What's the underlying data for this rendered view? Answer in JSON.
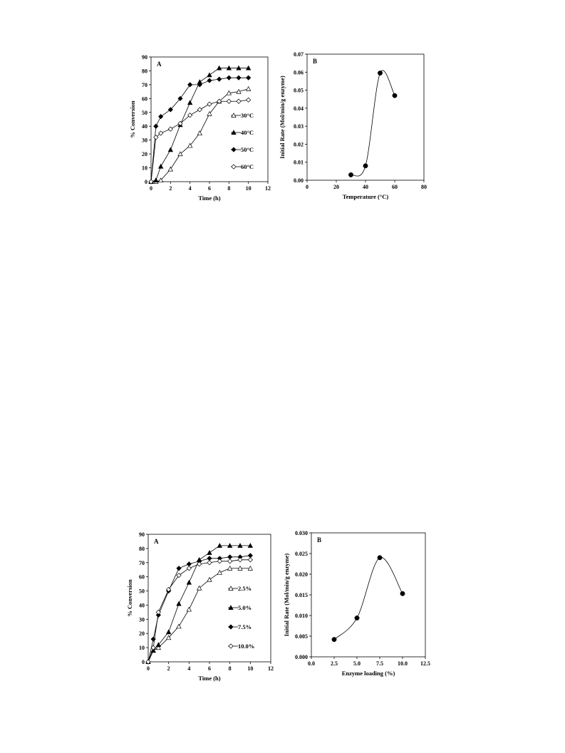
{
  "chart_data": [
    {
      "id": "fig1A",
      "type": "line",
      "panel_label": "A",
      "xlabel": "Time (h)",
      "ylabel": "% Conversion",
      "xlim": [
        0,
        12
      ],
      "ylim": [
        0,
        90
      ],
      "xticks": [
        "0",
        "2",
        "4",
        "6",
        "8",
        "10",
        "12"
      ],
      "yticks": [
        "0",
        "10",
        "20",
        "30",
        "40",
        "50",
        "60",
        "70",
        "80",
        "90"
      ],
      "legend_position": "right",
      "series": [
        {
          "name": "30°C",
          "marker": "triangle-open",
          "x": [
            0,
            0.5,
            1,
            2,
            3,
            4,
            5,
            6,
            7,
            8,
            9,
            10
          ],
          "y": [
            0,
            0,
            1,
            9,
            20,
            26,
            35,
            49,
            58,
            64,
            65,
            67
          ]
        },
        {
          "name": "40°C",
          "marker": "triangle-filled",
          "x": [
            0,
            0.5,
            1,
            2,
            3,
            4,
            5,
            6,
            7,
            8,
            9,
            10
          ],
          "y": [
            0,
            1,
            11,
            23,
            41,
            57,
            72,
            77,
            82,
            82,
            82,
            82
          ]
        },
        {
          "name": "50°C",
          "marker": "diamond-filled",
          "x": [
            0,
            0.5,
            1,
            2,
            3,
            4,
            5,
            6,
            7,
            8,
            9,
            10
          ],
          "y": [
            0,
            40,
            47,
            52,
            60,
            70,
            70,
            73,
            74,
            75,
            75,
            75
          ]
        },
        {
          "name": "60°C",
          "marker": "diamond-open",
          "x": [
            0,
            0.5,
            1,
            2,
            3,
            4,
            5,
            6,
            7,
            8,
            9,
            10
          ],
          "y": [
            0,
            32,
            35,
            38,
            42,
            48,
            52,
            56,
            58,
            58,
            58,
            59
          ]
        }
      ]
    },
    {
      "id": "fig1B",
      "type": "scatter",
      "panel_label": "B",
      "xlabel": "Temperature (°C)",
      "ylabel": "Initial Rate (Mol/min/g enzyme)",
      "xlim": [
        0,
        80
      ],
      "ylim": [
        0,
        0.07
      ],
      "xticks": [
        "0",
        "20",
        "40",
        "60",
        "80"
      ],
      "yticks": [
        "0.00",
        "0.01",
        "0.02",
        "0.03",
        "0.04",
        "0.05",
        "0.06",
        "0.07"
      ],
      "series": [
        {
          "marker": "circle-filled",
          "smooth_line": true,
          "x": [
            30,
            40,
            50,
            60
          ],
          "y": [
            0.003,
            0.008,
            0.0595,
            0.047
          ]
        }
      ]
    },
    {
      "id": "fig2A",
      "type": "line",
      "panel_label": "A",
      "xlabel": "Time (h)",
      "ylabel": "% Conversion",
      "xlim": [
        0,
        12
      ],
      "ylim": [
        0,
        90
      ],
      "xticks": [
        "0",
        "2",
        "4",
        "6",
        "8",
        "10",
        "12"
      ],
      "yticks": [
        "0",
        "10",
        "20",
        "30",
        "40",
        "50",
        "60",
        "70",
        "80",
        "90"
      ],
      "legend_position": "right",
      "series": [
        {
          "name": "2.5%",
          "marker": "triangle-open",
          "x": [
            0,
            0.5,
            1,
            2,
            3,
            4,
            5,
            6,
            7,
            8,
            9,
            10
          ],
          "y": [
            0,
            8,
            10,
            17,
            25,
            37,
            52,
            58,
            63,
            66,
            66,
            66
          ]
        },
        {
          "name": "5.0%",
          "marker": "triangle-filled",
          "x": [
            0,
            0.5,
            1,
            2,
            3,
            4,
            5,
            6,
            7,
            8,
            9,
            10
          ],
          "y": [
            0,
            8,
            12,
            21,
            41,
            56,
            72,
            77,
            82,
            82,
            82,
            82
          ]
        },
        {
          "name": "7.5%",
          "marker": "diamond-filled",
          "x": [
            0,
            0.5,
            1,
            2,
            3,
            4,
            5,
            6,
            7,
            8,
            9,
            10
          ],
          "y": [
            0,
            16,
            33,
            50,
            66,
            69,
            71,
            73,
            73,
            74,
            74,
            75
          ]
        },
        {
          "name": "10.0%",
          "marker": "diamond-open",
          "x": [
            0,
            0.5,
            1,
            2,
            3,
            4,
            5,
            6,
            7,
            8,
            9,
            10
          ],
          "y": [
            0,
            10,
            35,
            51,
            61,
            66,
            69,
            70,
            71,
            71,
            72,
            72
          ]
        }
      ]
    },
    {
      "id": "fig2B",
      "type": "scatter",
      "panel_label": "B",
      "xlabel": "Enzyme loading (%)",
      "ylabel": "Initial Rate (Mol/min/g enzyme)",
      "xlim": [
        0,
        12.5
      ],
      "ylim": [
        0,
        0.03
      ],
      "xticks": [
        "0.0",
        "2.5",
        "5.0",
        "7.5",
        "10.0",
        "12.5"
      ],
      "yticks": [
        "0.000",
        "0.005",
        "0.010",
        "0.015",
        "0.020",
        "0.025",
        "0.030"
      ],
      "series": [
        {
          "marker": "circle-filled",
          "smooth_line": true,
          "x": [
            2.5,
            5.0,
            7.5,
            10.0
          ],
          "y": [
            0.0042,
            0.0094,
            0.024,
            0.0153
          ]
        }
      ]
    }
  ]
}
